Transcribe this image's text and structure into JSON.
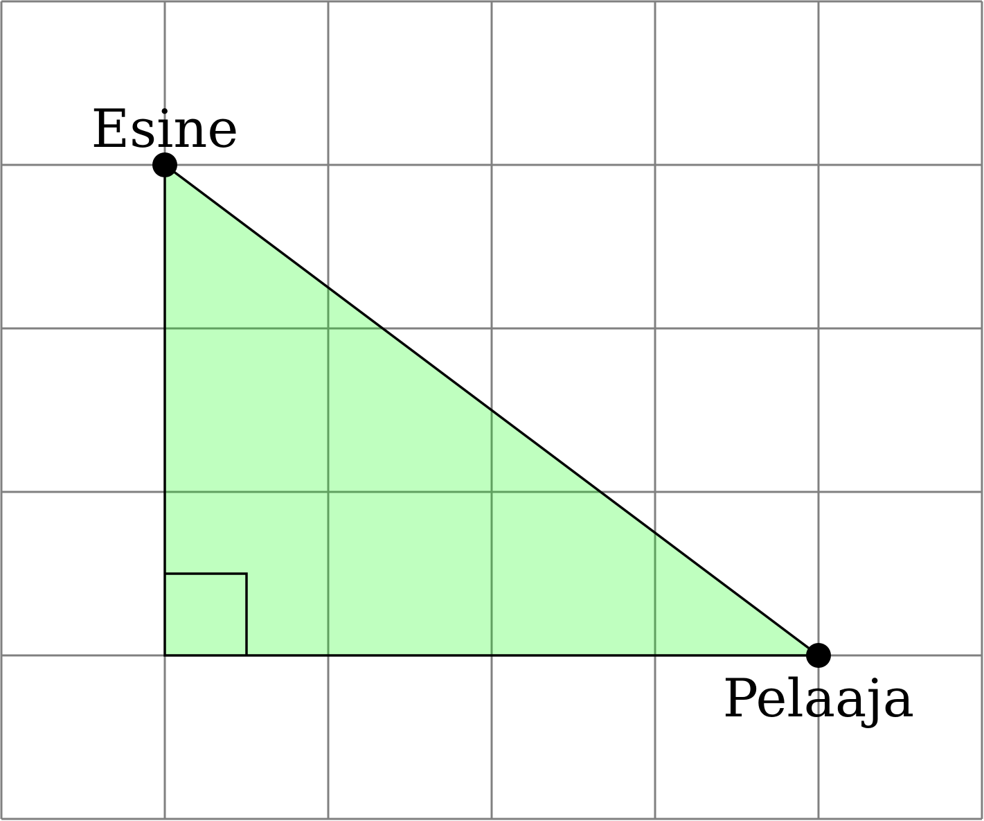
{
  "grid": {
    "columns": 6,
    "rows": 5,
    "line_color": "#808080"
  },
  "triangle": {
    "fill_color": "#00ff00",
    "fill_opacity": 0.25,
    "stroke_color": "#000000",
    "right_angle_marker": true
  },
  "points": [
    {
      "id": "object",
      "label": "Esine",
      "grid_x": 1,
      "grid_y": 4,
      "label_position": "above"
    },
    {
      "id": "player",
      "label": "Pelaaja",
      "grid_x": 5,
      "grid_y": 1,
      "label_position": "below"
    }
  ]
}
